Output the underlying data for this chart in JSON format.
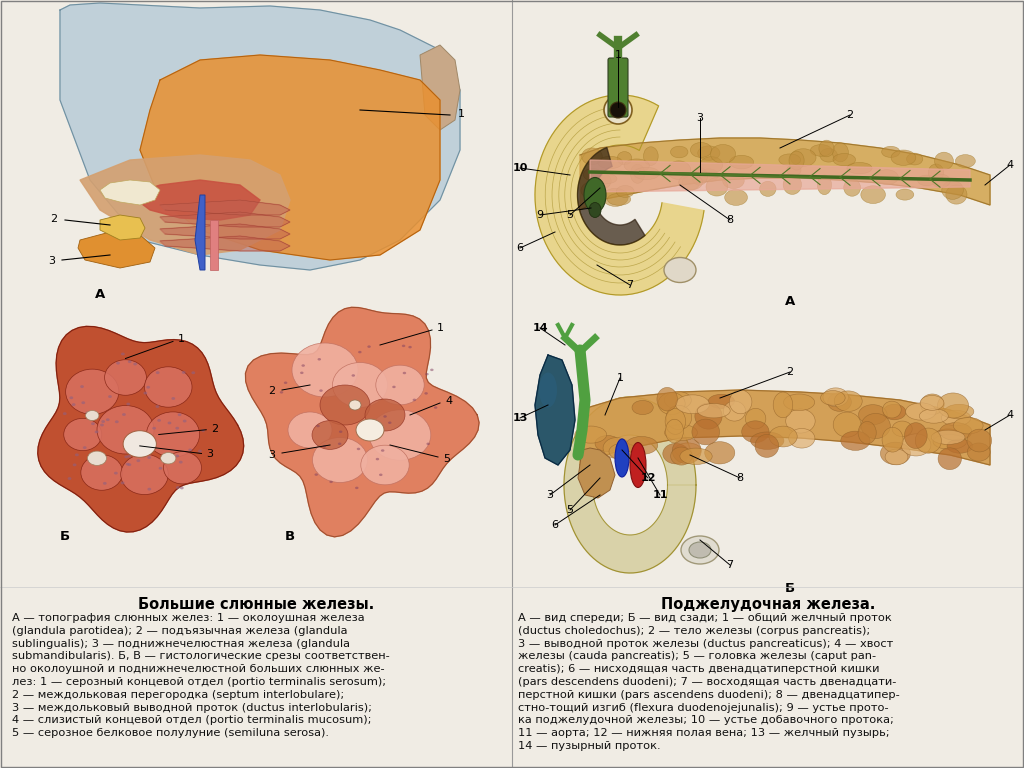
{
  "background_color": "#f0ece4",
  "title_left": "Большие слюнные железы.",
  "title_right": "Поджелудочная железа.",
  "text_left_line1": "А — топография слюнных желез: 1 — околоушная железа (glandula parotidea); 2 — подъязычная железа (glandula",
  "text_left_line2": "sublingualis); 3 — поднижнечелюстная железа (glandula submandibularis). Б, В — гистологические срезы соответствен-",
  "text_left_line3": "но околоушной и поднижнечелюстной больших слюнных же- лез: 1 — серозный концевой отдел (portio terminalis serosum);",
  "text_left_line4": "2 — междольковая перегородка (septum interlobulare);",
  "text_left_line5": "3 — междольковый выводной проток (ductus interlobularis);",
  "text_left_line6": "4 — слизистый концевой отдел (portio terminalis mucosum);",
  "text_left_line7": "5 — серозное белковое полулуние (semiluna serosa).",
  "text_right_line1": "А — вид спереди; Б — вид сзади; 1 — общий желчный проток (ductus choledochus); 2 — тело железы (corpus pancreatis);",
  "text_right_line2": "3 — выводной проток железы (ductus pancreaticus); 4 — хвост железы (cauda pancreatis); 5 — головка железы (caput pan-",
  "text_right_line3": "creatis); 6 — нисходящая часть двенадцатиперстной кишки (pars descendens duodeni); 7 — восходящая часть двенадцати-",
  "text_right_line4": "перстной кишки (pars ascendens duodeni); 8 — двенадцатипер- стно-тощий изгиб (flexura duodenojejunalis); 9 — устье прото-",
  "text_right_line5": "ка поджелудочной железы; 10 — устье добавочного протока;",
  "text_right_line6": "11 — аорта; 12 — нижняя полая вена; 13 — желчный пузырь;",
  "text_right_line7": "14 — пузырный проток.",
  "divider_color": "#999999",
  "text_color": "#111111",
  "title_color": "#000000",
  "font_size_title": 10.5,
  "font_size_text": 8.2,
  "font_size_label": 9.5,
  "font_size_number": 8
}
